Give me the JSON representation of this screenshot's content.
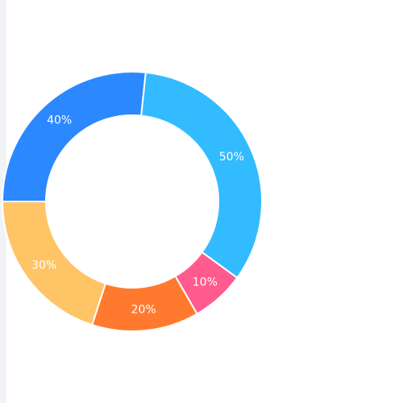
{
  "chart_data": {
    "type": "pie",
    "variant": "donut",
    "categories": [
      "",
      "",
      "",
      "",
      ""
    ],
    "values": [
      40,
      50,
      10,
      20,
      30
    ],
    "labels": [
      "40%",
      "50%",
      "10%",
      "20%",
      "30%"
    ],
    "colors": [
      "#2b88ff",
      "#33bbff",
      "#ff5b8f",
      "#ff7a2f",
      "#ffc466"
    ],
    "legend": "none",
    "title": ""
  }
}
